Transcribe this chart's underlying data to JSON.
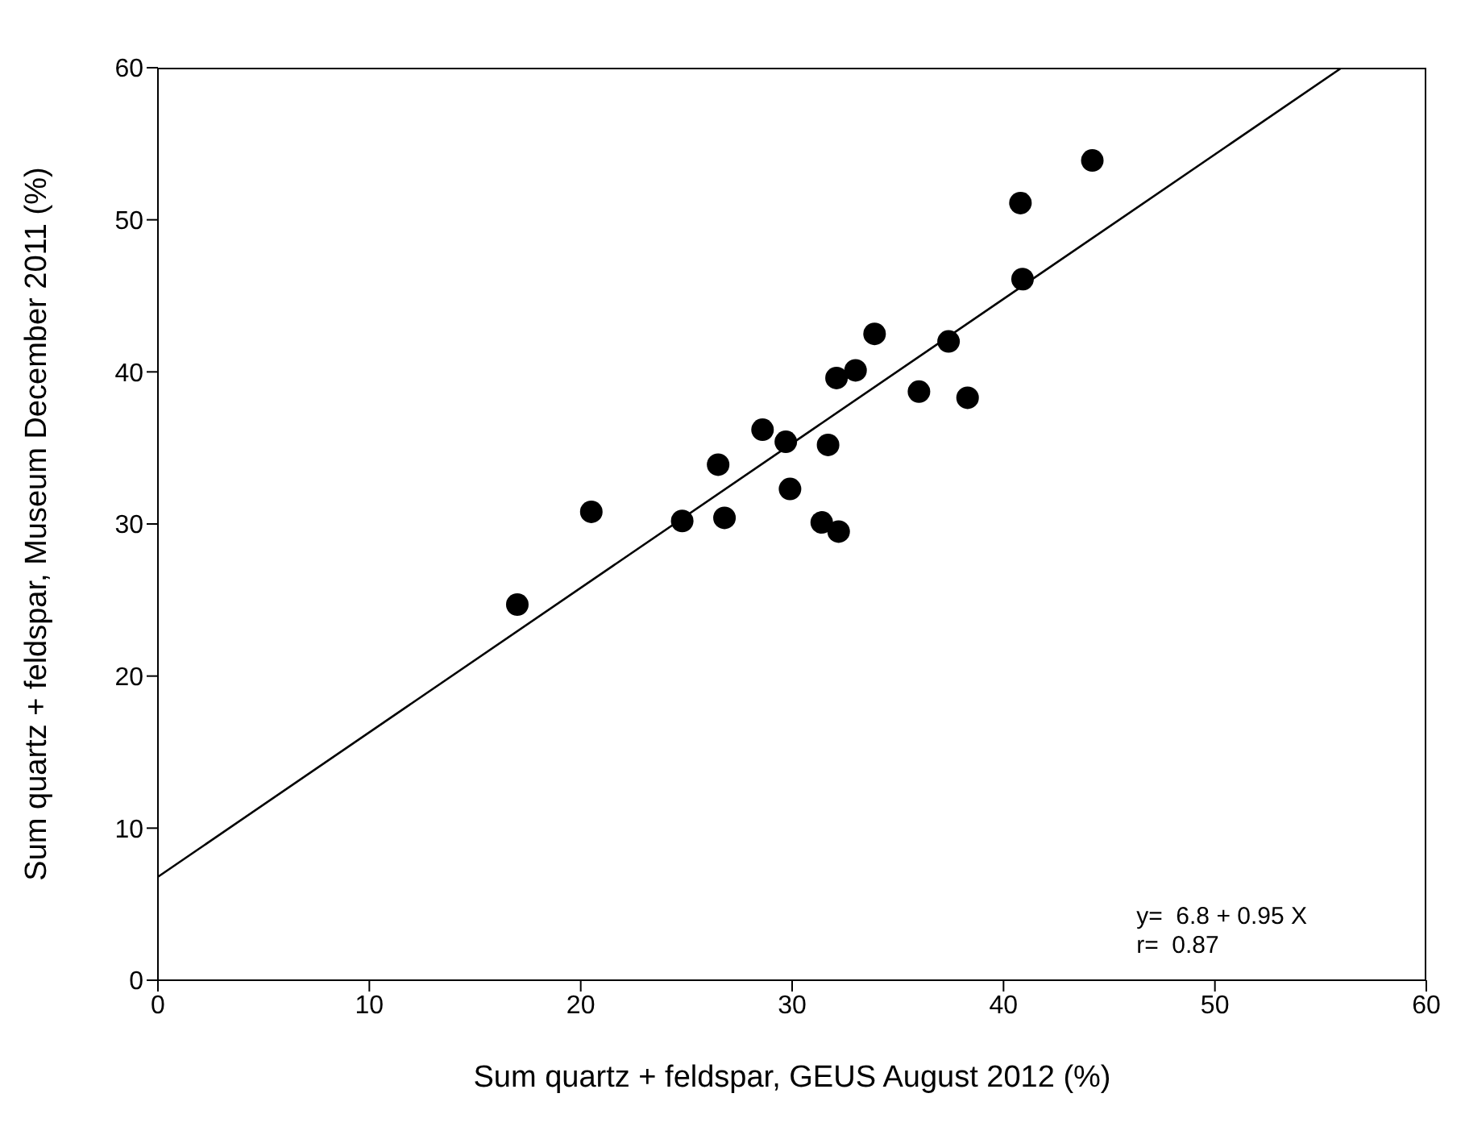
{
  "chart_data": {
    "type": "scatter",
    "xlabel": "Sum quartz + feldspar, GEUS August 2012 (%)",
    "ylabel": "Sum quartz + feldspar, Museum December 2011 (%)",
    "xlim": [
      0,
      60
    ],
    "xticks": [
      0,
      10,
      20,
      30,
      40,
      50,
      60
    ],
    "ylim": [
      0,
      60
    ],
    "yticks": [
      0,
      10,
      20,
      30,
      40,
      50,
      60
    ],
    "series": [
      {
        "marker": "circle",
        "color": "#000000",
        "x": [
          17.0,
          20.5,
          24.8,
          26.8,
          26.5,
          28.6,
          29.7,
          29.9,
          31.4,
          32.2,
          31.7,
          32.1,
          33.0,
          33.9,
          36.0,
          37.4,
          38.3,
          40.8,
          40.9,
          44.2
        ],
        "values": [
          24.7,
          30.8,
          30.2,
          30.4,
          33.9,
          36.2,
          35.4,
          32.3,
          30.1,
          29.5,
          35.2,
          39.6,
          40.1,
          42.5,
          38.7,
          42.0,
          38.3,
          51.1,
          46.1,
          53.9
        ]
      },
      {
        "type": "line",
        "color": "#000000",
        "x": [
          0,
          56
        ],
        "values": [
          6.8,
          60
        ]
      }
    ],
    "annotations": [
      "y=  6.8 + 0.95 X",
      "r=  0.87"
    ]
  }
}
